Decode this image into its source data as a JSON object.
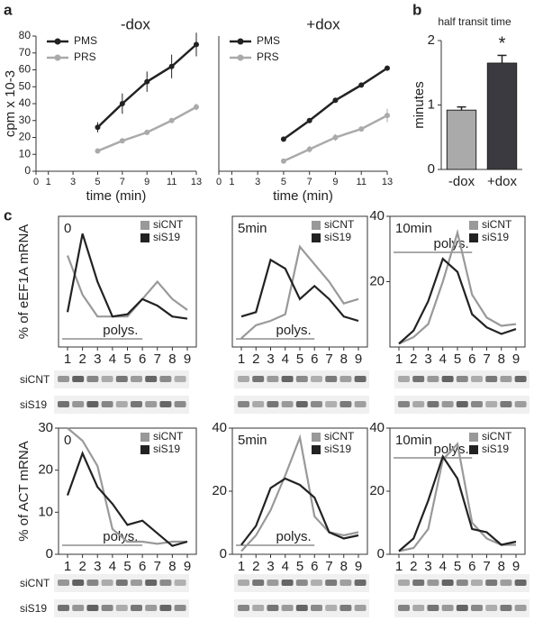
{
  "panel_labels": [
    "a",
    "b",
    "c"
  ],
  "blots": {
    "row_labels": [
      "siCNT",
      "siS19",
      "siCNT",
      "siS19"
    ]
  },
  "chart_data": [
    {
      "type": "line",
      "title": "-dox",
      "y_label": "cpm x 10-3",
      "x_label": "time (min)",
      "x": [
        5,
        7,
        9,
        11,
        13
      ],
      "xlim": [
        0,
        13
      ],
      "xticks": [
        0,
        1,
        3,
        5,
        7,
        9,
        11,
        13
      ],
      "ylim": [
        0,
        80
      ],
      "yticks": [
        0,
        10,
        20,
        30,
        40,
        50,
        60,
        70,
        80
      ],
      "series": [
        {
          "name": "PMS",
          "color": "#222222",
          "values": [
            26,
            40,
            53,
            62,
            75
          ],
          "errors": [
            3,
            6,
            6,
            7,
            7
          ]
        },
        {
          "name": "PRS",
          "color": "#aaaaaa",
          "values": [
            12,
            18,
            23,
            30,
            38
          ],
          "errors": [
            1,
            1,
            1,
            1,
            2
          ]
        }
      ]
    },
    {
      "type": "line",
      "title": "+dox",
      "x_label": "time (min)",
      "x": [
        5,
        7,
        9,
        11,
        13
      ],
      "xlim": [
        0,
        13
      ],
      "xticks": [
        0,
        1,
        3,
        5,
        7,
        9,
        11,
        13
      ],
      "ylim": [
        0,
        80
      ],
      "series": [
        {
          "name": "PMS",
          "color": "#222222",
          "values": [
            19,
            30,
            42,
            51,
            61
          ],
          "errors": [
            1,
            1,
            1,
            1,
            1
          ]
        },
        {
          "name": "PRS",
          "color": "#aaaaaa",
          "values": [
            6,
            13,
            20,
            25,
            33
          ],
          "errors": [
            1,
            2,
            2,
            1,
            4
          ]
        }
      ]
    },
    {
      "type": "bar",
      "title": "half transit time",
      "y_label": "minutes",
      "annotation": "*",
      "categories": [
        "-dox",
        "+dox"
      ],
      "values": [
        0.92,
        1.65
      ],
      "errors": [
        0.05,
        0.12
      ],
      "colors": [
        "#aaaaaa",
        "#3a3a40"
      ],
      "ylim": [
        0,
        2
      ],
      "yticks": [
        0,
        1,
        2
      ]
    },
    {
      "type": "line",
      "label": "0",
      "y_label": "% of eEF1A mRNA",
      "annotation": "polys.",
      "categories": [
        "1",
        "2",
        "3",
        "4",
        "5",
        "6",
        "7",
        "8",
        "9"
      ],
      "ylim": [
        0,
        30
      ],
      "series": [
        {
          "name": "siCNT",
          "color": "#999999",
          "values": [
            21,
            12,
            7,
            7,
            7,
            11,
            15,
            11,
            8.5
          ]
        },
        {
          "name": "siS19",
          "color": "#222222",
          "values": [
            8,
            26,
            15,
            7,
            7.5,
            11,
            9.5,
            7,
            6.5
          ]
        }
      ]
    },
    {
      "type": "line",
      "label": "5min",
      "annotation": "polys.",
      "categories": [
        "1",
        "2",
        "3",
        "4",
        "5",
        "6",
        "7",
        "8",
        "9"
      ],
      "ylim": [
        0,
        30
      ],
      "series": [
        {
          "name": "siCNT",
          "color": "#999999",
          "values": [
            2,
            5,
            6,
            7.5,
            23,
            19,
            15,
            10,
            11
          ]
        },
        {
          "name": "siS19",
          "color": "#222222",
          "values": [
            7,
            8,
            20,
            18,
            11,
            14,
            11,
            7,
            6
          ]
        }
      ]
    },
    {
      "type": "line",
      "label": "10min",
      "annotation": "polys.",
      "categories": [
        "1",
        "2",
        "3",
        "4",
        "5",
        "6",
        "7",
        "8",
        "9"
      ],
      "ylim": [
        0,
        40
      ],
      "yticks": [
        20,
        40
      ],
      "series": [
        {
          "name": "siCNT",
          "color": "#999999",
          "values": [
            1,
            3,
            7,
            20,
            35,
            16,
            9,
            6.5,
            7
          ]
        },
        {
          "name": "siS19",
          "color": "#222222",
          "values": [
            1,
            5,
            14,
            27,
            23,
            10,
            6,
            4,
            5.5
          ]
        }
      ]
    },
    {
      "type": "line",
      "label": "0",
      "y_label": "% of ACT mRNA",
      "annotation": "polys.",
      "categories": [
        "1",
        "2",
        "3",
        "4",
        "5",
        "6",
        "7",
        "8",
        "9"
      ],
      "ylim": [
        0,
        30
      ],
      "yticks": [
        0,
        10,
        20,
        30
      ],
      "series": [
        {
          "name": "siCNT",
          "color": "#999999",
          "values": [
            30,
            27,
            21,
            6,
            3,
            3,
            2.5,
            3,
            3
          ]
        },
        {
          "name": "siS19",
          "color": "#222222",
          "values": [
            14,
            24,
            16,
            12,
            7,
            8,
            5,
            2,
            3
          ]
        }
      ]
    },
    {
      "type": "line",
      "label": "5min",
      "annotation": "polys.",
      "categories": [
        "1",
        "2",
        "3",
        "4",
        "5",
        "6",
        "7",
        "8",
        "9"
      ],
      "ylim": [
        0,
        40
      ],
      "yticks": [
        0,
        20,
        40
      ],
      "series": [
        {
          "name": "siCNT",
          "color": "#999999",
          "values": [
            1,
            6,
            14,
            25,
            37,
            12,
            7,
            6,
            7
          ]
        },
        {
          "name": "siS19",
          "color": "#222222",
          "values": [
            3,
            9,
            21,
            24,
            22,
            18,
            7,
            5,
            6
          ]
        }
      ]
    },
    {
      "type": "line",
      "label": "10min",
      "annotation": "polys.",
      "categories": [
        "1",
        "2",
        "3",
        "4",
        "5",
        "6",
        "7",
        "8",
        "9"
      ],
      "ylim": [
        0,
        40
      ],
      "yticks": [
        0,
        20,
        40
      ],
      "series": [
        {
          "name": "siCNT",
          "color": "#999999",
          "values": [
            1,
            2,
            8,
            30,
            35,
            10,
            5,
            3,
            3
          ]
        },
        {
          "name": "siS19",
          "color": "#222222",
          "values": [
            1,
            5,
            17,
            31,
            24,
            8,
            7,
            3,
            4
          ]
        }
      ]
    }
  ]
}
